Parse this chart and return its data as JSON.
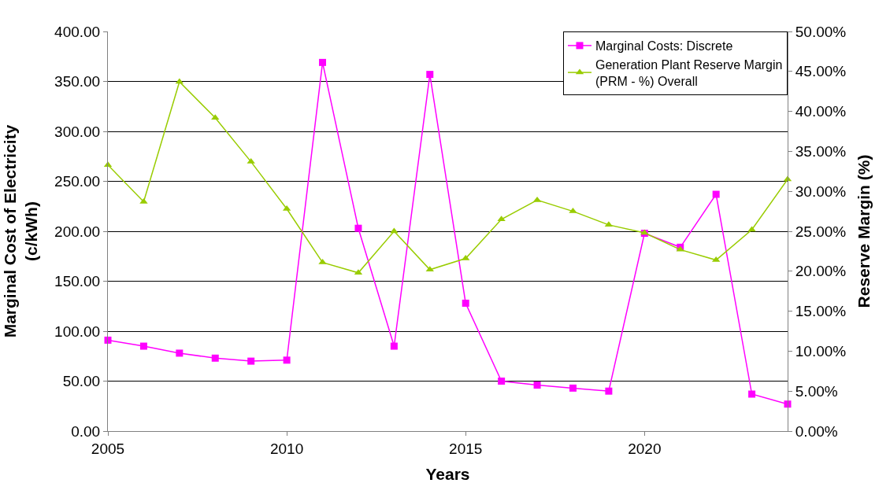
{
  "chart_data": {
    "type": "line",
    "xlabel": "Years",
    "ylabel": "Marginal Cost of Electricity\n(c/kWh)",
    "y2label": "Reserve Margin (%)",
    "x": [
      2005,
      2006,
      2007,
      2008,
      2009,
      2010,
      2011,
      2012,
      2013,
      2014,
      2015,
      2016,
      2017,
      2018,
      2019,
      2020,
      2021,
      2022,
      2023,
      2024
    ],
    "xlim": [
      2005,
      2024
    ],
    "xticks": [
      2005,
      2010,
      2015,
      2020
    ],
    "ylim": [
      0,
      400
    ],
    "yticks": [
      {
        "value": 0,
        "label": "0.00"
      },
      {
        "value": 50,
        "label": "50.00"
      },
      {
        "value": 100,
        "label": "100.00"
      },
      {
        "value": 150,
        "label": "150.00"
      },
      {
        "value": 200,
        "label": "200.00"
      },
      {
        "value": 250,
        "label": "250.00"
      },
      {
        "value": 300,
        "label": "300.00"
      },
      {
        "value": 350,
        "label": "350.00"
      },
      {
        "value": 400,
        "label": "400.00"
      }
    ],
    "y2lim": [
      0,
      50
    ],
    "y2ticks": [
      {
        "value": 0,
        "label": "0.00%"
      },
      {
        "value": 5,
        "label": "5.00%"
      },
      {
        "value": 10,
        "label": "10.00%"
      },
      {
        "value": 15,
        "label": "15.00%"
      },
      {
        "value": 20,
        "label": "20.00%"
      },
      {
        "value": 25,
        "label": "25.00%"
      },
      {
        "value": 30,
        "label": "30.00%"
      },
      {
        "value": 35,
        "label": "35.00%"
      },
      {
        "value": 40,
        "label": "40.00%"
      },
      {
        "value": 45,
        "label": "45.00%"
      },
      {
        "value": 50,
        "label": "50.00%"
      }
    ],
    "grid": "y",
    "legend": "top right",
    "line_style": "solid",
    "series": [
      {
        "name": "Marginal Costs: Discrete",
        "color": "#ff00ff",
        "marker": "square",
        "values": [
          91,
          85,
          78,
          73,
          70,
          71,
          369,
          203,
          85,
          357,
          128,
          50,
          46,
          43,
          40,
          198,
          184,
          237,
          37,
          27
        ]
      },
      {
        "name": "Generation Plant Reserve Margin\n(PRM - %) Overall",
        "color": "#99cc00",
        "marker": "triangle",
        "axis": "y2",
        "values": [
          33.3,
          28.7,
          43.7,
          39.2,
          33.7,
          27.8,
          21.1,
          19.8,
          25.0,
          20.2,
          21.6,
          26.5,
          28.9,
          27.5,
          25.8,
          24.8,
          22.7,
          21.4,
          25.2,
          31.5
        ]
      }
    ]
  }
}
